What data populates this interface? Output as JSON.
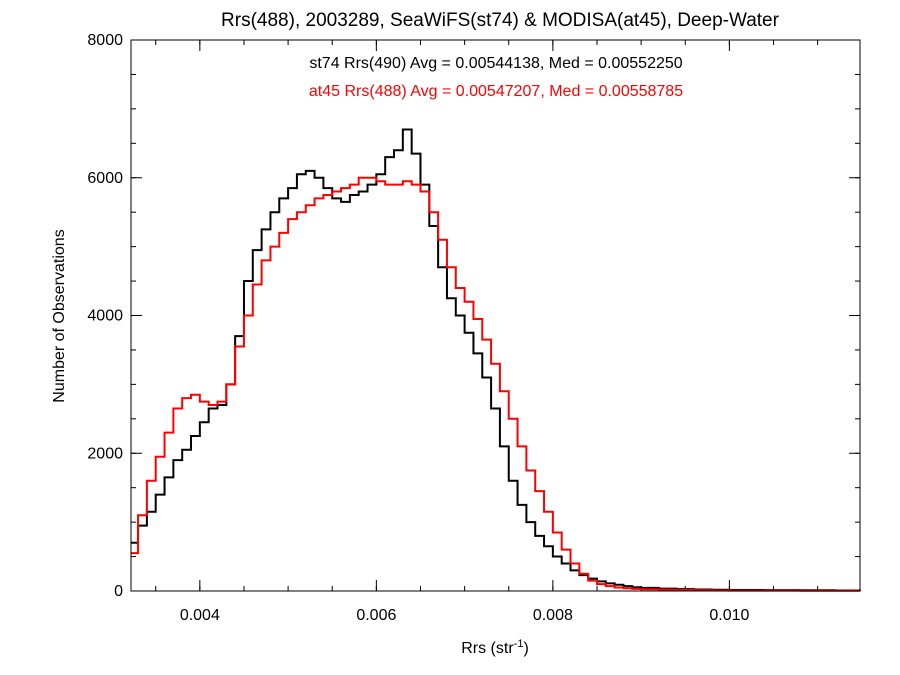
{
  "chart_data": {
    "type": "line",
    "title": "Rrs(488), 2003289, SeaWiFS(st74) & MODISA(at45), Deep-Water",
    "xlabel": "Rrs (str",
    "xlabel_sup": "-1",
    "xlabel_close": ")",
    "ylabel": "Number of Observations",
    "xlim": [
      0.00322,
      0.01148
    ],
    "ylim": [
      0,
      8000
    ],
    "x_ticks": [
      0.004,
      0.006,
      0.008,
      0.01
    ],
    "x_tick_labels": [
      "0.004",
      "0.006",
      "0.008",
      "0.010"
    ],
    "y_ticks": [
      0,
      2000,
      4000,
      6000,
      8000
    ],
    "y_tick_labels": [
      "0",
      "2000",
      "4000",
      "6000",
      "8000"
    ],
    "x_minor_step": 0.0005,
    "y_minor_step": 500,
    "step_style": "histogram",
    "grid": false,
    "annotations": [
      {
        "text": "st74 Rrs(490) Avg = 0.00544138, Med = 0.00552250",
        "color": "#000000"
      },
      {
        "text": "at45 Rrs(488) Avg = 0.00547207, Med = 0.00558785",
        "color": "#ff0000"
      }
    ],
    "series": [
      {
        "name": "st74 Rrs(490)",
        "color": "#000000",
        "x": [
          0.00322,
          0.0033,
          0.0034,
          0.0035,
          0.0036,
          0.0037,
          0.0038,
          0.0039,
          0.004,
          0.0041,
          0.0042,
          0.0043,
          0.0044,
          0.0045,
          0.0046,
          0.0047,
          0.0048,
          0.0049,
          0.005,
          0.0051,
          0.0052,
          0.0053,
          0.0054,
          0.0055,
          0.0056,
          0.0057,
          0.0058,
          0.0059,
          0.006,
          0.0061,
          0.0062,
          0.0063,
          0.0064,
          0.0065,
          0.0066,
          0.0067,
          0.0068,
          0.0069,
          0.007,
          0.0071,
          0.0072,
          0.0073,
          0.0074,
          0.0075,
          0.0076,
          0.0077,
          0.0078,
          0.0079,
          0.008,
          0.0081,
          0.0082,
          0.0083,
          0.0084,
          0.0085,
          0.0086,
          0.0087,
          0.0088,
          0.0089,
          0.009,
          0.0092,
          0.0094,
          0.0096,
          0.0098,
          0.01,
          0.0104,
          0.0108,
          0.0112,
          0.01148
        ],
        "values": [
          700,
          950,
          1150,
          1400,
          1650,
          1900,
          2050,
          2250,
          2450,
          2650,
          2700,
          3000,
          3700,
          4500,
          4950,
          5250,
          5500,
          5700,
          5850,
          6050,
          6100,
          6000,
          5850,
          5700,
          5650,
          5750,
          5800,
          5900,
          6050,
          6300,
          6400,
          6700,
          6350,
          5900,
          5300,
          4700,
          4250,
          4000,
          3750,
          3450,
          3100,
          2650,
          2100,
          1600,
          1250,
          1000,
          800,
          650,
          500,
          400,
          300,
          230,
          180,
          140,
          110,
          90,
          70,
          55,
          45,
          35,
          28,
          22,
          18,
          15,
          12,
          10,
          8,
          6
        ]
      },
      {
        "name": "at45 Rrs(488)",
        "color": "#ff0000",
        "x": [
          0.00322,
          0.0033,
          0.0034,
          0.0035,
          0.0036,
          0.0037,
          0.0038,
          0.0039,
          0.004,
          0.0041,
          0.0042,
          0.0043,
          0.0044,
          0.0045,
          0.0046,
          0.0047,
          0.0048,
          0.0049,
          0.005,
          0.0051,
          0.0052,
          0.0053,
          0.0054,
          0.0055,
          0.0056,
          0.0057,
          0.0058,
          0.0059,
          0.006,
          0.0061,
          0.0062,
          0.0063,
          0.0064,
          0.0065,
          0.0066,
          0.0067,
          0.0068,
          0.0069,
          0.007,
          0.0071,
          0.0072,
          0.0073,
          0.0074,
          0.0075,
          0.0076,
          0.0077,
          0.0078,
          0.0079,
          0.008,
          0.0081,
          0.0082,
          0.0083,
          0.0084,
          0.0085,
          0.0086,
          0.0087,
          0.0088,
          0.0089,
          0.009,
          0.0092,
          0.0094,
          0.0096,
          0.0098,
          0.01,
          0.0104,
          0.0108,
          0.0112,
          0.01148
        ],
        "values": [
          550,
          1100,
          1600,
          1950,
          2300,
          2650,
          2800,
          2850,
          2750,
          2700,
          2750,
          3000,
          3550,
          4000,
          4450,
          4800,
          5000,
          5200,
          5400,
          5500,
          5600,
          5700,
          5750,
          5800,
          5850,
          5900,
          6000,
          6000,
          5950,
          5900,
          5900,
          5950,
          5900,
          5800,
          5500,
          5100,
          4700,
          4400,
          4200,
          3950,
          3650,
          3300,
          2900,
          2500,
          2100,
          1750,
          1450,
          1150,
          850,
          600,
          400,
          250,
          150,
          100,
          70,
          50,
          40,
          30,
          25,
          18,
          14,
          10,
          8,
          6,
          5,
          4,
          3,
          2
        ]
      }
    ]
  }
}
